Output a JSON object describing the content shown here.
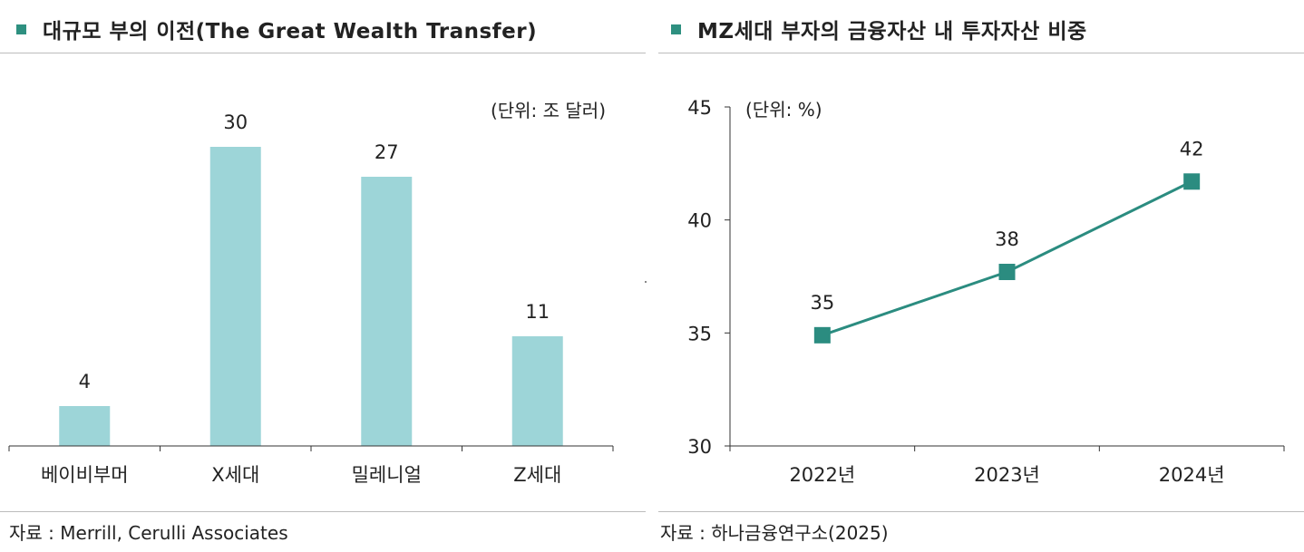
{
  "left_panel": {
    "title": "대규모 부의 이전(The Great Wealth Transfer)",
    "source": "자료 : Merrill, Cerulli Associates"
  },
  "right_panel": {
    "title": "MZ세대 부자의 금융자산 내 투자자산 비중",
    "source": "자료 : 하나금융연구소(2025)"
  },
  "colors": {
    "title_marker": "#2E9080",
    "bar_fill": "#9DD5D8",
    "line": "#2B8C80",
    "rule": "#BCBCBC",
    "axis": "#333333"
  },
  "chart_data": [
    {
      "type": "bar",
      "unit_note": "(단위: 조 달러)",
      "categories": [
        "베이비부머",
        "X세대",
        "밀레니얼",
        "Z세대"
      ],
      "values": [
        4,
        30,
        27,
        11
      ],
      "data_labels": [
        "4",
        "30",
        "27",
        "11"
      ],
      "ylim": [
        0,
        32
      ],
      "grid": false,
      "legend": "none"
    },
    {
      "type": "line",
      "unit_note": "(단위: %)",
      "x": [
        "2022년",
        "2023년",
        "2024년"
      ],
      "values": [
        34.9,
        37.7,
        41.7
      ],
      "data_labels": [
        "35",
        "38",
        "42"
      ],
      "ylim": [
        30,
        45
      ],
      "yticks": [
        "30",
        "35",
        "40",
        "45"
      ],
      "marker": "square",
      "grid": false,
      "legend": "none"
    }
  ]
}
